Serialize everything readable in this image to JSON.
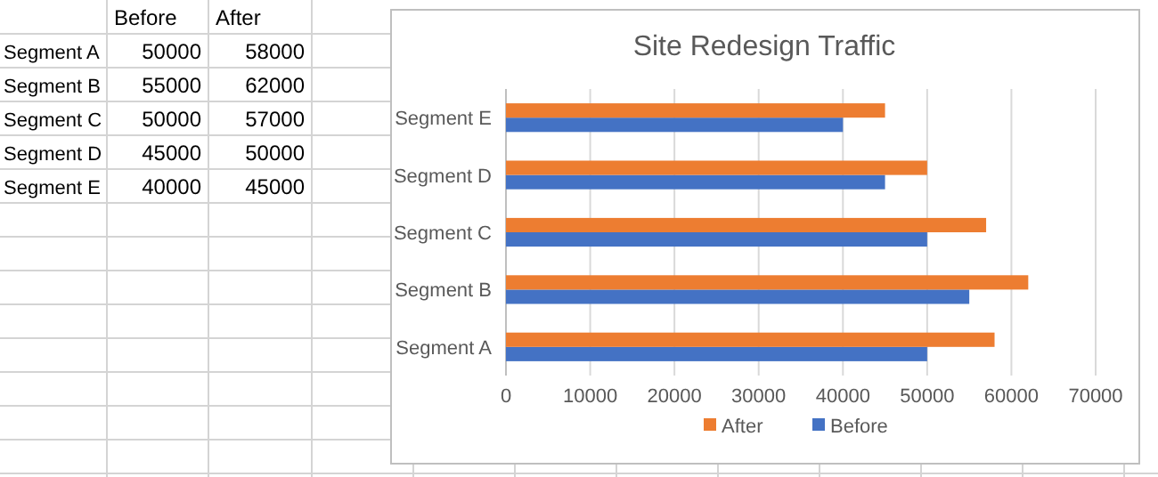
{
  "chart_data": [
    {
      "type": "heatmap",
      "categories": [
        "Before",
        "After"
      ],
      "y_categories": [
        "Segment A",
        "Segment B",
        "Segment C",
        "Segment D",
        "Segment E"
      ],
      "cells": [
        [
          50000,
          58000
        ],
        [
          55000,
          62000
        ],
        [
          50000,
          57000
        ],
        [
          45000,
          50000
        ],
        [
          40000,
          45000
        ]
      ],
      "data_labels": true
    },
    {
      "type": "bar",
      "orientation": "horizontal",
      "title": "Site Redesign Traffic",
      "categories": [
        "Segment E",
        "Segment D",
        "Segment C",
        "Segment B",
        "Segment A"
      ],
      "series": [
        {
          "name": "Before",
          "color": "#4472c4",
          "values": [
            40000,
            45000,
            50000,
            55000,
            50000
          ]
        },
        {
          "name": "After",
          "color": "#ed7d31",
          "values": [
            45000,
            50000,
            57000,
            62000,
            58000
          ]
        }
      ],
      "xlim": [
        0,
        70000
      ],
      "xticks": [
        0,
        10000,
        20000,
        30000,
        40000,
        50000,
        60000,
        70000
      ],
      "grid": "x",
      "legend": "bottom"
    }
  ]
}
